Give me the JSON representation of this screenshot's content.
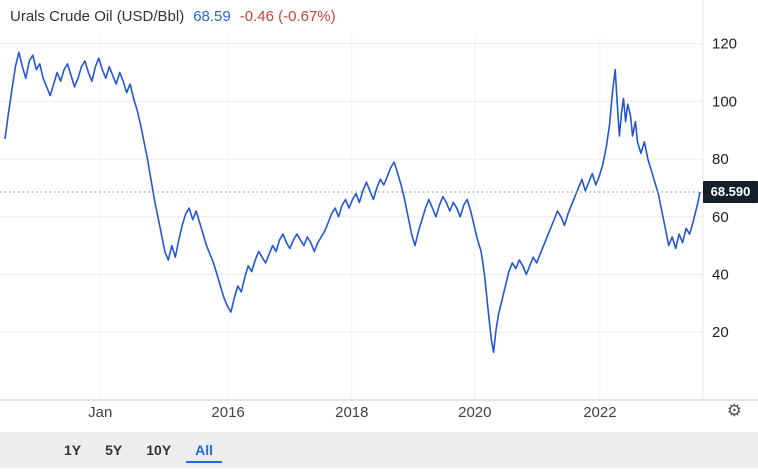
{
  "header": {
    "title": "Urals Crude Oil (USD/Bbl)",
    "price": "68.59",
    "change": "-0.46 (-0.67%)"
  },
  "price_badge": "68.590",
  "icons": {
    "gear": "⚙"
  },
  "colors": {
    "line": "#2457d5",
    "price": "#2b66d9",
    "change": "#c0443c",
    "badge_bg": "#151f29",
    "badge_text": "#ffffff",
    "active": "#1d6ae5",
    "grid": "#ececec",
    "toolbar_bg": "#eeeeef"
  },
  "toolbar": {
    "buttons": [
      {
        "label": "1Y",
        "active": false
      },
      {
        "label": "5Y",
        "active": false
      },
      {
        "label": "10Y",
        "active": false
      },
      {
        "label": "All",
        "active": true
      }
    ]
  },
  "chart_data": {
    "type": "line",
    "title": "Urals Crude Oil (USD/Bbl)",
    "unit": "USD/Bbl",
    "current_value": 68.59,
    "ylim": [
      -3.5,
      123
    ],
    "y_ticks": [
      120,
      100,
      80,
      60,
      40,
      20
    ],
    "x_ticks": [
      {
        "label": "Jan",
        "pos": 0.137
      },
      {
        "label": "2016",
        "pos": 0.321
      },
      {
        "label": "2018",
        "pos": 0.499
      },
      {
        "label": "2020",
        "pos": 0.676
      },
      {
        "label": "2022",
        "pos": 0.856
      }
    ],
    "grid": true,
    "legend": false,
    "series": [
      {
        "name": "Urals Crude Oil",
        "color": "#2457d5",
        "points": [
          [
            0,
            87
          ],
          [
            0.5,
            96
          ],
          [
            1,
            104
          ],
          [
            1.5,
            112
          ],
          [
            2,
            117
          ],
          [
            2.5,
            112
          ],
          [
            3,
            108
          ],
          [
            3.5,
            114
          ],
          [
            4,
            116
          ],
          [
            4.5,
            111
          ],
          [
            5,
            113
          ],
          [
            5.5,
            108
          ],
          [
            6,
            105
          ],
          [
            6.5,
            102
          ],
          [
            7,
            106
          ],
          [
            7.5,
            110
          ],
          [
            8,
            107
          ],
          [
            8.5,
            111
          ],
          [
            9,
            113
          ],
          [
            9.5,
            109
          ],
          [
            10,
            105
          ],
          [
            10.5,
            108
          ],
          [
            11,
            112
          ],
          [
            11.5,
            114
          ],
          [
            12,
            110
          ],
          [
            12.5,
            107
          ],
          [
            13,
            112
          ],
          [
            13.5,
            115
          ],
          [
            14,
            111
          ],
          [
            14.5,
            108
          ],
          [
            15,
            112
          ],
          [
            15.5,
            109
          ],
          [
            16,
            106
          ],
          [
            16.5,
            110
          ],
          [
            17,
            107
          ],
          [
            17.5,
            103
          ],
          [
            18,
            106
          ],
          [
            18.5,
            101
          ],
          [
            19,
            97
          ],
          [
            19.5,
            92
          ],
          [
            20,
            86
          ],
          [
            20.5,
            80
          ],
          [
            21,
            73
          ],
          [
            21.5,
            66
          ],
          [
            22,
            60
          ],
          [
            22.5,
            54
          ],
          [
            23,
            48
          ],
          [
            23.5,
            45
          ],
          [
            24,
            50
          ],
          [
            24.5,
            46
          ],
          [
            25,
            52
          ],
          [
            25.5,
            57
          ],
          [
            26,
            61
          ],
          [
            26.5,
            63
          ],
          [
            27,
            59
          ],
          [
            27.5,
            62
          ],
          [
            28,
            58
          ],
          [
            28.5,
            54
          ],
          [
            29,
            50
          ],
          [
            29.5,
            47
          ],
          [
            30,
            44
          ],
          [
            30.5,
            40
          ],
          [
            31,
            36
          ],
          [
            31.5,
            32
          ],
          [
            32,
            29
          ],
          [
            32.5,
            27
          ],
          [
            33,
            32
          ],
          [
            33.5,
            36
          ],
          [
            34,
            34
          ],
          [
            34.5,
            39
          ],
          [
            35,
            43
          ],
          [
            35.5,
            41
          ],
          [
            36,
            45
          ],
          [
            36.5,
            48
          ],
          [
            37,
            46
          ],
          [
            37.5,
            44
          ],
          [
            38,
            47
          ],
          [
            38.5,
            50
          ],
          [
            39,
            48
          ],
          [
            39.5,
            52
          ],
          [
            40,
            54
          ],
          [
            40.5,
            51
          ],
          [
            41,
            49
          ],
          [
            41.5,
            52
          ],
          [
            42,
            54
          ],
          [
            42.5,
            52
          ],
          [
            43,
            50
          ],
          [
            43.5,
            53
          ],
          [
            44,
            51
          ],
          [
            44.5,
            48
          ],
          [
            45,
            51
          ],
          [
            45.5,
            53
          ],
          [
            46,
            55
          ],
          [
            46.5,
            58
          ],
          [
            47,
            61
          ],
          [
            47.5,
            63
          ],
          [
            48,
            60
          ],
          [
            48.5,
            64
          ],
          [
            49,
            66
          ],
          [
            49.5,
            63
          ],
          [
            50,
            66
          ],
          [
            50.5,
            68
          ],
          [
            51,
            65
          ],
          [
            51.5,
            69
          ],
          [
            52,
            72
          ],
          [
            52.5,
            69
          ],
          [
            53,
            66
          ],
          [
            53.5,
            70
          ],
          [
            54,
            73
          ],
          [
            54.5,
            71
          ],
          [
            55,
            74
          ],
          [
            55.5,
            77
          ],
          [
            56,
            79
          ],
          [
            56.5,
            75
          ],
          [
            57,
            71
          ],
          [
            57.5,
            66
          ],
          [
            58,
            60
          ],
          [
            58.5,
            54
          ],
          [
            59,
            50
          ],
          [
            59.5,
            55
          ],
          [
            60,
            59
          ],
          [
            60.5,
            63
          ],
          [
            61,
            66
          ],
          [
            61.5,
            63
          ],
          [
            62,
            60
          ],
          [
            62.5,
            64
          ],
          [
            63,
            67
          ],
          [
            63.5,
            65
          ],
          [
            64,
            62
          ],
          [
            64.5,
            65
          ],
          [
            65,
            63
          ],
          [
            65.5,
            60
          ],
          [
            66,
            64
          ],
          [
            66.5,
            66
          ],
          [
            67,
            62
          ],
          [
            67.5,
            57
          ],
          [
            68,
            52
          ],
          [
            68.5,
            48
          ],
          [
            69,
            40
          ],
          [
            69.5,
            28
          ],
          [
            70,
            17
          ],
          [
            70.3,
            13
          ],
          [
            70.6,
            20
          ],
          [
            71,
            26
          ],
          [
            71.5,
            31
          ],
          [
            72,
            36
          ],
          [
            72.5,
            41
          ],
          [
            73,
            44
          ],
          [
            73.5,
            42
          ],
          [
            74,
            45
          ],
          [
            74.5,
            43
          ],
          [
            75,
            40
          ],
          [
            75.5,
            43
          ],
          [
            76,
            46
          ],
          [
            76.5,
            44
          ],
          [
            77,
            47
          ],
          [
            77.5,
            50
          ],
          [
            78,
            53
          ],
          [
            78.5,
            56
          ],
          [
            79,
            59
          ],
          [
            79.5,
            62
          ],
          [
            80,
            60
          ],
          [
            80.5,
            57
          ],
          [
            81,
            61
          ],
          [
            81.5,
            64
          ],
          [
            82,
            67
          ],
          [
            82.5,
            70
          ],
          [
            83,
            73
          ],
          [
            83.5,
            69
          ],
          [
            84,
            72
          ],
          [
            84.5,
            75
          ],
          [
            85,
            71
          ],
          [
            85.5,
            74
          ],
          [
            86,
            78
          ],
          [
            86.5,
            84
          ],
          [
            87,
            92
          ],
          [
            87.4,
            103
          ],
          [
            87.8,
            111
          ],
          [
            88.1,
            99
          ],
          [
            88.4,
            88
          ],
          [
            88.7,
            96
          ],
          [
            89,
            101
          ],
          [
            89.3,
            93
          ],
          [
            89.6,
            99
          ],
          [
            90,
            95
          ],
          [
            90.3,
            88
          ],
          [
            90.7,
            93
          ],
          [
            91,
            86
          ],
          [
            91.5,
            82
          ],
          [
            92,
            86
          ],
          [
            92.5,
            80
          ],
          [
            93,
            76
          ],
          [
            93.5,
            72
          ],
          [
            94,
            68
          ],
          [
            94.5,
            62
          ],
          [
            95,
            56
          ],
          [
            95.5,
            50
          ],
          [
            96,
            53
          ],
          [
            96.5,
            49
          ],
          [
            97,
            54
          ],
          [
            97.5,
            51
          ],
          [
            98,
            56
          ],
          [
            98.5,
            54
          ],
          [
            99,
            58
          ],
          [
            99.4,
            62
          ],
          [
            99.7,
            65
          ],
          [
            100,
            68.59
          ]
        ]
      }
    ]
  }
}
